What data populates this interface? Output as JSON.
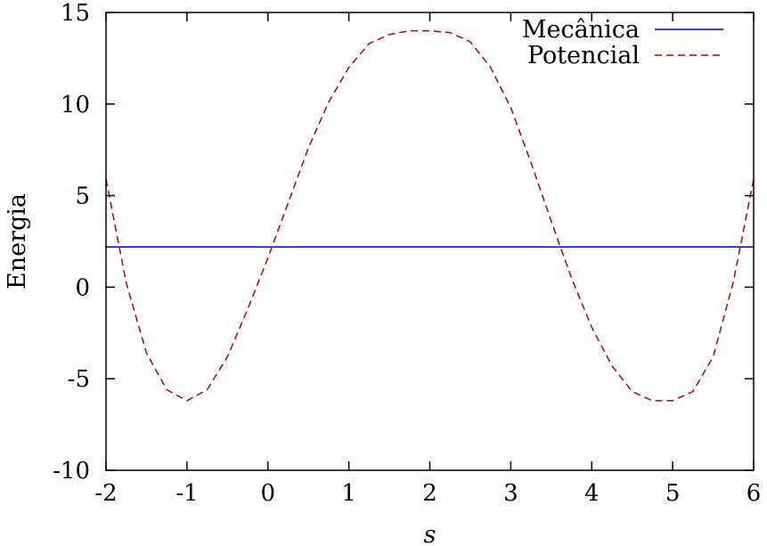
{
  "chart_data": {
    "type": "line",
    "xlabel": "s",
    "ylabel": "Energia",
    "xlim": [
      -2,
      6
    ],
    "ylim": [
      -10,
      15
    ],
    "xticks": [
      -2,
      -1,
      0,
      1,
      2,
      3,
      4,
      5,
      6
    ],
    "yticks": [
      -10,
      -5,
      0,
      5,
      10,
      15
    ],
    "grid": false,
    "legend_position": "top-right",
    "series": [
      {
        "name": "Mecânica",
        "color": "#0000b3",
        "dash": "solid",
        "x": [
          -2,
          6
        ],
        "y": [
          2.2,
          2.2
        ]
      },
      {
        "name": "Potencial",
        "color": "#b30000",
        "dash": "dashed",
        "x": [
          -2.0,
          -1.75,
          -1.5,
          -1.25,
          -1.0,
          -0.75,
          -0.5,
          -0.25,
          0.0,
          0.25,
          0.5,
          0.75,
          1.0,
          1.25,
          1.5,
          1.75,
          2.0,
          2.25,
          2.5,
          2.75,
          3.0,
          3.25,
          3.5,
          3.75,
          4.0,
          4.25,
          4.5,
          4.75,
          5.0,
          5.25,
          5.5,
          5.75,
          6.0
        ],
        "y": [
          5.9,
          0.24,
          -3.6,
          -5.6,
          -6.2,
          -5.6,
          -3.8,
          -1.2,
          1.6,
          4.6,
          7.6,
          10.1,
          12.0,
          13.3,
          13.8,
          14.0,
          14.0,
          13.9,
          13.4,
          12.0,
          9.8,
          6.8,
          3.6,
          0.5,
          -2.2,
          -4.3,
          -5.7,
          -6.2,
          -6.2,
          -5.7,
          -3.8,
          0.3,
          5.9
        ]
      }
    ]
  }
}
